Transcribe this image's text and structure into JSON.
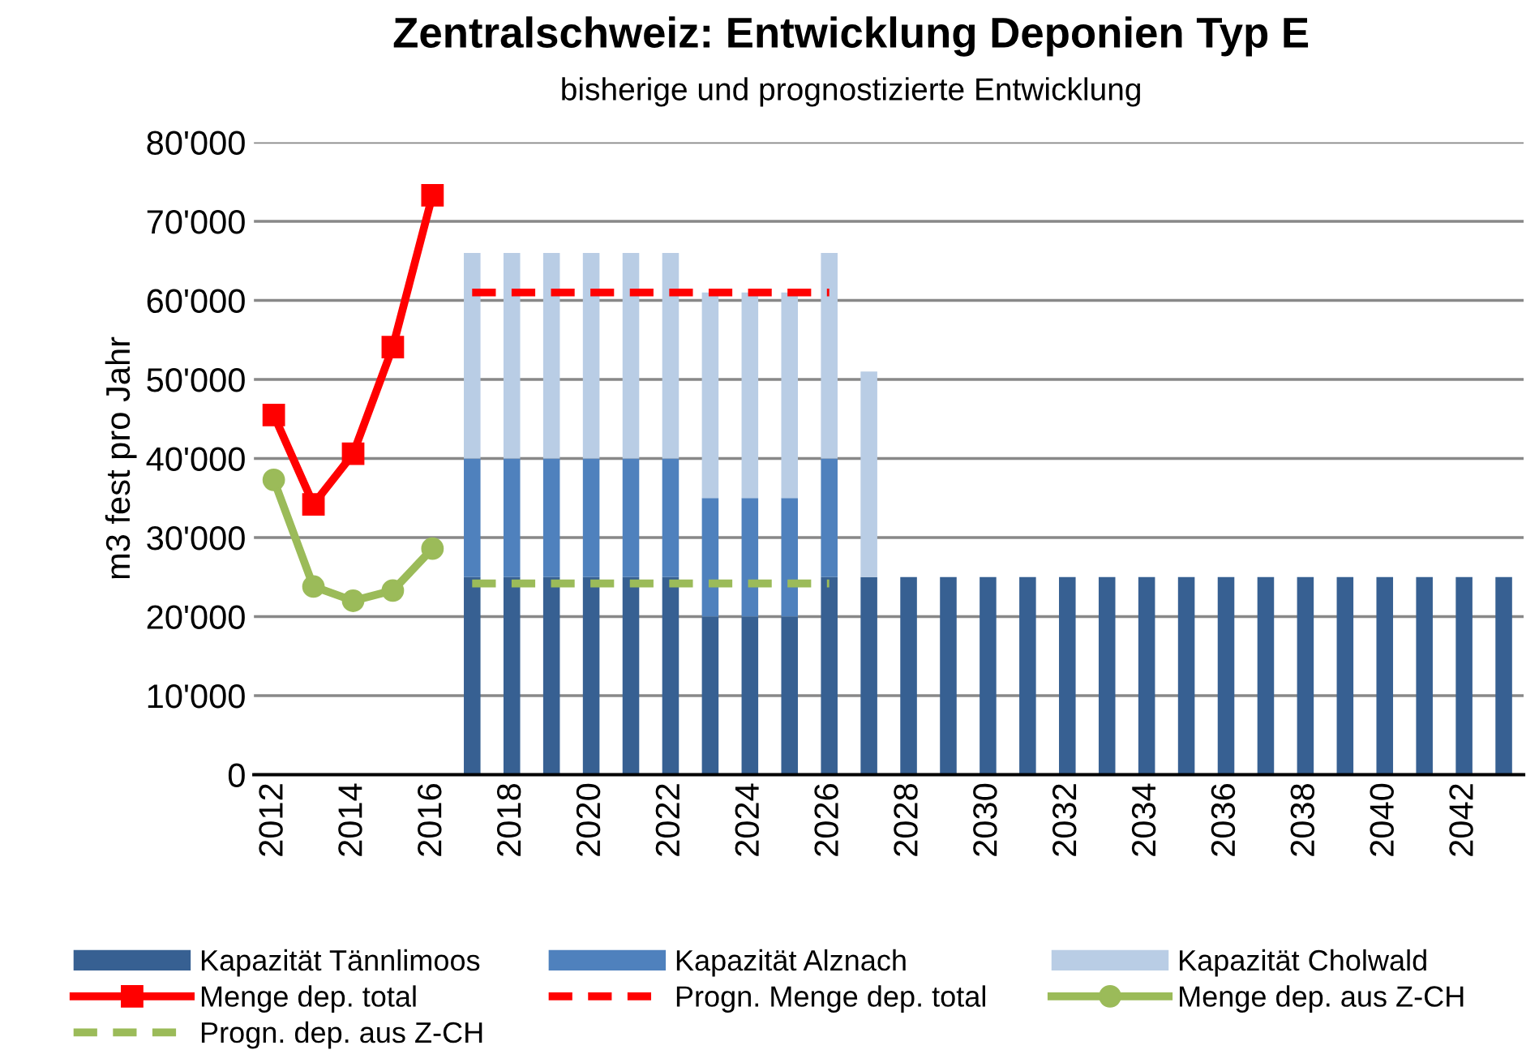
{
  "chart_data": {
    "type": "bar",
    "stacked": true,
    "title": "Zentralschweiz: Entwicklung Deponien Typ E",
    "subtitle": "bisherige und prognostizierte Entwicklung",
    "ylabel": "m3 fest pro Jahr",
    "categories": [
      "2012",
      null,
      "2014",
      null,
      "2016",
      null,
      "2018",
      null,
      "2020",
      null,
      "2022",
      null,
      "2024",
      null,
      "2026",
      null,
      "2028",
      null,
      "2030",
      null,
      "2032",
      null,
      "2034",
      null,
      "2036",
      null,
      "2038",
      null,
      "2040",
      null,
      "2042",
      null
    ],
    "ylim": [
      0,
      80000
    ],
    "yticks": [
      0,
      {
        "value": 10000,
        "label": "10'000"
      },
      {
        "value": 20000,
        "label": "20'000"
      },
      {
        "value": 30000,
        "label": "30'000"
      },
      {
        "value": 40000,
        "label": "40'000"
      },
      {
        "value": 50000,
        "label": "50'000"
      },
      {
        "value": 60000,
        "label": "60'000"
      },
      {
        "value": 70000,
        "label": "70'000"
      },
      {
        "value": 80000,
        "label": "80'000"
      }
    ],
    "grid": "y",
    "legend": "bottom",
    "series": [
      {
        "name": "Kapazität Tännlimoos",
        "color": "#376092",
        "values": [
          null,
          null,
          null,
          null,
          null,
          25000,
          25000,
          25000,
          25000,
          25000,
          25000,
          20000,
          20000,
          20000,
          25000,
          25000,
          25000,
          25000,
          25000,
          25000,
          25000,
          25000,
          25000,
          25000,
          25000,
          25000,
          25000,
          25000,
          25000,
          25000,
          25000,
          25000
        ]
      },
      {
        "name": "Kapazität Alznach",
        "color": "#4f81bd",
        "values": [
          null,
          null,
          null,
          null,
          null,
          15000,
          15000,
          15000,
          15000,
          15000,
          15000,
          15000,
          15000,
          15000,
          15000,
          null,
          null,
          null,
          null,
          null,
          null,
          null,
          null,
          null,
          null,
          null,
          null,
          null,
          null,
          null,
          null,
          null
        ]
      },
      {
        "name": "Kapazität Cholwald",
        "color": "#b9cde5",
        "values": [
          null,
          null,
          null,
          null,
          null,
          26000,
          26000,
          26000,
          26000,
          26000,
          26000,
          26000,
          26000,
          26000,
          26000,
          26000,
          null,
          null,
          null,
          null,
          null,
          null,
          null,
          null,
          null,
          null,
          null,
          null,
          null,
          null,
          null,
          null
        ]
      },
      {
        "name": "Menge dep. total",
        "type": "line",
        "color": "#ff0000",
        "marker": "square",
        "line_style": "solid",
        "values": [
          45500,
          34200,
          40600,
          54100,
          73300,
          null,
          null,
          null,
          null,
          null,
          null,
          null,
          null,
          null,
          null,
          null,
          null,
          null,
          null,
          null,
          null,
          null,
          null,
          null,
          null,
          null,
          null,
          null,
          null,
          null,
          null,
          null
        ]
      },
      {
        "name": "Progn. Menge dep. total",
        "type": "line",
        "color": "#ff0000",
        "marker": "none",
        "line_style": "dashed",
        "values": [
          null,
          null,
          null,
          null,
          null,
          61000,
          61000,
          61000,
          61000,
          61000,
          61000,
          61000,
          61000,
          61000,
          61000,
          null,
          null,
          null,
          null,
          null,
          null,
          null,
          null,
          null,
          null,
          null,
          null,
          null,
          null,
          null,
          null,
          null
        ]
      },
      {
        "name": "Menge dep. aus Z-CH",
        "type": "line",
        "color": "#9bbb59",
        "marker": "circle",
        "line_style": "solid",
        "values": [
          37300,
          23800,
          22000,
          23300,
          28600,
          null,
          null,
          null,
          null,
          null,
          null,
          null,
          null,
          null,
          null,
          null,
          null,
          null,
          null,
          null,
          null,
          null,
          null,
          null,
          null,
          null,
          null,
          null,
          null,
          null,
          null,
          null
        ]
      },
      {
        "name": "Progn. dep. aus Z-CH",
        "type": "line",
        "color": "#9bbb59",
        "marker": "none",
        "line_style": "dashed",
        "values": [
          null,
          null,
          null,
          null,
          null,
          24200,
          24200,
          24200,
          24200,
          24200,
          24200,
          24200,
          24200,
          24200,
          24200,
          null,
          null,
          null,
          null,
          null,
          null,
          null,
          null,
          null,
          null,
          null,
          null,
          null,
          null,
          null,
          null,
          null
        ]
      }
    ]
  }
}
